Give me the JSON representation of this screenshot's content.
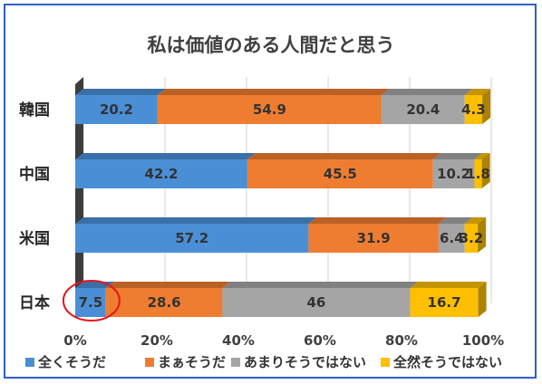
{
  "chart_data": {
    "type": "bar",
    "orientation": "horizontal",
    "stacked": "percent",
    "title": "私は価値のある人間だと思う",
    "categories": [
      "韓国",
      "中国",
      "米国",
      "日本"
    ],
    "series": [
      {
        "name": "全くそうだ",
        "values": [
          20.2,
          42.2,
          57.2,
          7.5
        ],
        "labels": [
          "20.2",
          "42.2",
          "57.2",
          "7.5"
        ],
        "color": "#4a8fd6"
      },
      {
        "name": "まぁそうだ",
        "values": [
          54.9,
          45.5,
          31.9,
          28.6
        ],
        "labels": [
          "54.9",
          "45.5",
          "31.9",
          "28.6"
        ],
        "color": "#ee7d31"
      },
      {
        "name": "あまりそうではない",
        "values": [
          20.4,
          10.2,
          6.4,
          46
        ],
        "labels": [
          "20.4",
          "10.2",
          "6.4",
          "46"
        ],
        "color": "#a5a5a5"
      },
      {
        "name": "全然そうではない",
        "values": [
          4.3,
          1.8,
          3.2,
          16.7
        ],
        "labels": [
          "4.3",
          "1.8",
          "3.2",
          "16.7"
        ],
        "color": "#fdbf00"
      }
    ],
    "xlim": [
      0,
      100
    ],
    "xticks": [
      "0%",
      "20%",
      "40%",
      "60%",
      "80%",
      "100%"
    ],
    "grid": true,
    "legend": "bottom",
    "highlight": {
      "category": "日本",
      "series": "全くそうだ",
      "shape": "circle",
      "color": "#e8131b"
    }
  }
}
